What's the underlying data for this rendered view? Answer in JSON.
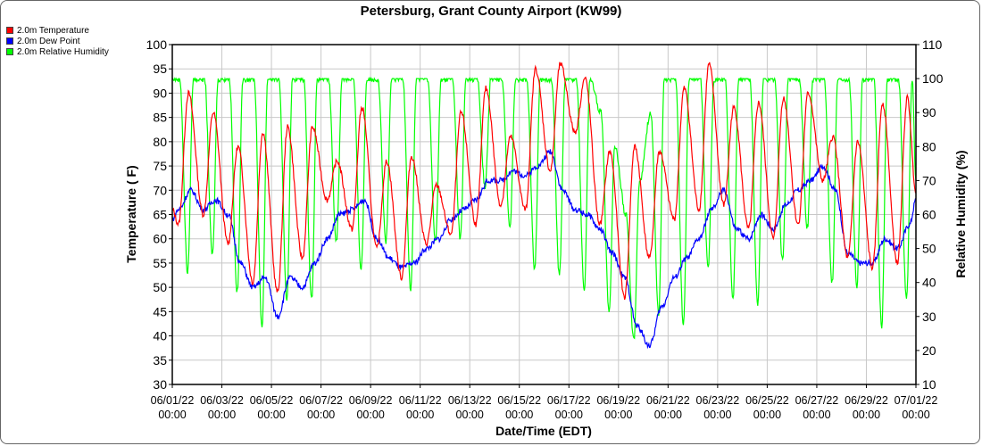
{
  "chart_data": {
    "type": "line",
    "title": "Petersburg, Grant County Airport (KW99)",
    "xlabel": "Date/Time (EDT)",
    "ylabel": "Temperature ( F)",
    "y2label": "Relative Humidity (%)",
    "x_unit": "days since 06/01/22 00:00",
    "xlim": [
      0,
      30
    ],
    "ylim": [
      30,
      100
    ],
    "y2lim": [
      10,
      110
    ],
    "grid": true,
    "legend_position": "top-left outside",
    "yticks": [
      "30",
      "35",
      "40",
      "45",
      "50",
      "55",
      "60",
      "65",
      "70",
      "75",
      "80",
      "85",
      "90",
      "95",
      "100"
    ],
    "y2ticks": [
      "10",
      "20",
      "30",
      "40",
      "50",
      "60",
      "70",
      "80",
      "90",
      "100",
      "110"
    ],
    "xticks": [
      {
        "date": "06/01/22",
        "time": "00:00"
      },
      {
        "date": "06/03/22",
        "time": "00:00"
      },
      {
        "date": "06/05/22",
        "time": "00:00"
      },
      {
        "date": "06/07/22",
        "time": "00:00"
      },
      {
        "date": "06/09/22",
        "time": "00:00"
      },
      {
        "date": "06/11/22",
        "time": "00:00"
      },
      {
        "date": "06/13/22",
        "time": "00:00"
      },
      {
        "date": "06/15/22",
        "time": "00:00"
      },
      {
        "date": "06/17/22",
        "time": "00:00"
      },
      {
        "date": "06/19/22",
        "time": "00:00"
      },
      {
        "date": "06/21/22",
        "time": "00:00"
      },
      {
        "date": "06/23/22",
        "time": "00:00"
      },
      {
        "date": "06/25/22",
        "time": "00:00"
      },
      {
        "date": "06/27/22",
        "time": "00:00"
      },
      {
        "date": "06/29/22",
        "time": "00:00"
      },
      {
        "date": "07/01/22",
        "time": "00:00"
      }
    ],
    "series": [
      {
        "name": "2.0m Temperature",
        "color": "#ff0000",
        "axis": "left",
        "points": [
          [
            0,
            66
          ],
          [
            0.25,
            63
          ],
          [
            0.65,
            90
          ],
          [
            1.25,
            65
          ],
          [
            1.65,
            86
          ],
          [
            2.25,
            59
          ],
          [
            2.65,
            79
          ],
          [
            3.25,
            51
          ],
          [
            3.65,
            82
          ],
          [
            4.25,
            49
          ],
          [
            4.65,
            83
          ],
          [
            5.25,
            56
          ],
          [
            5.65,
            83
          ],
          [
            6.25,
            68
          ],
          [
            6.65,
            76
          ],
          [
            7.25,
            62
          ],
          [
            7.65,
            87
          ],
          [
            8.25,
            58
          ],
          [
            8.65,
            76
          ],
          [
            9.25,
            52
          ],
          [
            9.65,
            77
          ],
          [
            10.25,
            59
          ],
          [
            10.65,
            71
          ],
          [
            11.25,
            61
          ],
          [
            11.65,
            86
          ],
          [
            12.25,
            63
          ],
          [
            12.65,
            91
          ],
          [
            13.25,
            67
          ],
          [
            13.65,
            81
          ],
          [
            14.25,
            66
          ],
          [
            14.65,
            95
          ],
          [
            15.25,
            74
          ],
          [
            15.65,
            96
          ],
          [
            16.25,
            82
          ],
          [
            16.65,
            93
          ],
          [
            17.25,
            63
          ],
          [
            17.65,
            78
          ],
          [
            18.25,
            48
          ],
          [
            18.65,
            79
          ],
          [
            19.25,
            56
          ],
          [
            19.65,
            78
          ],
          [
            20.25,
            64
          ],
          [
            20.65,
            91
          ],
          [
            21.25,
            66
          ],
          [
            21.65,
            96
          ],
          [
            22.25,
            67
          ],
          [
            22.65,
            87
          ],
          [
            23.25,
            62
          ],
          [
            23.65,
            88
          ],
          [
            24.25,
            60
          ],
          [
            24.65,
            89
          ],
          [
            25.25,
            63
          ],
          [
            25.65,
            90
          ],
          [
            26.25,
            72
          ],
          [
            26.65,
            81
          ],
          [
            27.25,
            56
          ],
          [
            27.65,
            80
          ],
          [
            28.25,
            54
          ],
          [
            28.65,
            88
          ],
          [
            29.25,
            55
          ],
          [
            29.65,
            89
          ],
          [
            30,
            70
          ]
        ]
      },
      {
        "name": "2.0m Dew Point",
        "color": "#0000ff",
        "axis": "left",
        "points": [
          [
            0,
            64
          ],
          [
            0.25,
            66
          ],
          [
            0.75,
            70
          ],
          [
            1.25,
            66
          ],
          [
            1.75,
            68
          ],
          [
            2.25,
            65
          ],
          [
            2.75,
            55
          ],
          [
            3.25,
            50
          ],
          [
            3.75,
            52
          ],
          [
            4.25,
            44
          ],
          [
            4.75,
            52
          ],
          [
            5.25,
            50
          ],
          [
            5.75,
            55
          ],
          [
            6.25,
            60
          ],
          [
            6.75,
            65
          ],
          [
            7.25,
            66
          ],
          [
            7.75,
            68
          ],
          [
            8.25,
            60
          ],
          [
            8.75,
            56
          ],
          [
            9.25,
            54
          ],
          [
            9.75,
            55
          ],
          [
            10.25,
            58
          ],
          [
            10.75,
            60
          ],
          [
            11.25,
            64
          ],
          [
            11.75,
            66
          ],
          [
            12.25,
            68
          ],
          [
            12.75,
            72
          ],
          [
            13.25,
            72
          ],
          [
            13.75,
            74
          ],
          [
            14.25,
            73
          ],
          [
            14.75,
            75
          ],
          [
            15.25,
            78
          ],
          [
            15.75,
            70
          ],
          [
            16.25,
            66
          ],
          [
            16.75,
            65
          ],
          [
            17.25,
            62
          ],
          [
            17.75,
            57
          ],
          [
            18.25,
            52
          ],
          [
            18.75,
            42
          ],
          [
            19.25,
            38
          ],
          [
            19.75,
            46
          ],
          [
            20.25,
            52
          ],
          [
            20.75,
            56
          ],
          [
            21.25,
            60
          ],
          [
            21.75,
            66
          ],
          [
            22.25,
            70
          ],
          [
            22.75,
            62
          ],
          [
            23.25,
            60
          ],
          [
            23.75,
            65
          ],
          [
            24.25,
            62
          ],
          [
            24.75,
            67
          ],
          [
            25.25,
            70
          ],
          [
            25.75,
            72
          ],
          [
            26.25,
            75
          ],
          [
            26.75,
            70
          ],
          [
            27.25,
            57
          ],
          [
            27.75,
            55
          ],
          [
            28.25,
            55
          ],
          [
            28.75,
            60
          ],
          [
            29.25,
            58
          ],
          [
            29.75,
            63
          ],
          [
            30,
            68
          ]
        ]
      },
      {
        "name": "2.0m Relative Humidity",
        "color": "#00ff00",
        "axis": "right",
        "points": [
          [
            0,
            100
          ],
          [
            0.3,
            100
          ],
          [
            0.62,
            43
          ],
          [
            0.85,
            100
          ],
          [
            1.3,
            100
          ],
          [
            1.62,
            48
          ],
          [
            1.85,
            100
          ],
          [
            2.3,
            100
          ],
          [
            2.62,
            37
          ],
          [
            2.85,
            100
          ],
          [
            3.3,
            100
          ],
          [
            3.62,
            27
          ],
          [
            3.85,
            100
          ],
          [
            4.3,
            100
          ],
          [
            4.62,
            35
          ],
          [
            4.85,
            100
          ],
          [
            5.3,
            100
          ],
          [
            5.62,
            35
          ],
          [
            5.85,
            100
          ],
          [
            6.3,
            100
          ],
          [
            6.62,
            52
          ],
          [
            6.85,
            100
          ],
          [
            7.3,
            100
          ],
          [
            7.62,
            44
          ],
          [
            7.85,
            100
          ],
          [
            8.3,
            100
          ],
          [
            8.62,
            52
          ],
          [
            8.85,
            100
          ],
          [
            9.3,
            100
          ],
          [
            9.62,
            38
          ],
          [
            9.85,
            100
          ],
          [
            10.3,
            100
          ],
          [
            10.62,
            52
          ],
          [
            10.85,
            100
          ],
          [
            11.3,
            100
          ],
          [
            11.62,
            53
          ],
          [
            11.85,
            100
          ],
          [
            12.3,
            100
          ],
          [
            12.62,
            68
          ],
          [
            12.85,
            100
          ],
          [
            13.3,
            100
          ],
          [
            13.62,
            56
          ],
          [
            13.85,
            100
          ],
          [
            14.3,
            100
          ],
          [
            14.62,
            44
          ],
          [
            14.85,
            100
          ],
          [
            15.3,
            100
          ],
          [
            15.62,
            42
          ],
          [
            15.85,
            100
          ],
          [
            16.3,
            100
          ],
          [
            16.62,
            38
          ],
          [
            16.85,
            100
          ],
          [
            17.3,
            90
          ],
          [
            17.62,
            32
          ],
          [
            17.85,
            80
          ],
          [
            18.3,
            60
          ],
          [
            18.62,
            23
          ],
          [
            18.85,
            70
          ],
          [
            19.3,
            90
          ],
          [
            19.62,
            31
          ],
          [
            19.85,
            100
          ],
          [
            20.3,
            100
          ],
          [
            20.62,
            27
          ],
          [
            20.85,
            100
          ],
          [
            21.3,
            100
          ],
          [
            21.62,
            44
          ],
          [
            21.85,
            100
          ],
          [
            22.3,
            100
          ],
          [
            22.62,
            35
          ],
          [
            22.85,
            100
          ],
          [
            23.3,
            100
          ],
          [
            23.62,
            34
          ],
          [
            23.85,
            100
          ],
          [
            24.3,
            100
          ],
          [
            24.62,
            46
          ],
          [
            24.85,
            100
          ],
          [
            25.3,
            100
          ],
          [
            25.62,
            56
          ],
          [
            25.85,
            100
          ],
          [
            26.3,
            100
          ],
          [
            26.62,
            40
          ],
          [
            26.85,
            100
          ],
          [
            27.3,
            100
          ],
          [
            27.62,
            39
          ],
          [
            27.85,
            100
          ],
          [
            28.3,
            100
          ],
          [
            28.62,
            27
          ],
          [
            28.85,
            100
          ],
          [
            29.3,
            100
          ],
          [
            29.62,
            35
          ],
          [
            29.85,
            100
          ],
          [
            30,
            70
          ]
        ]
      }
    ]
  }
}
